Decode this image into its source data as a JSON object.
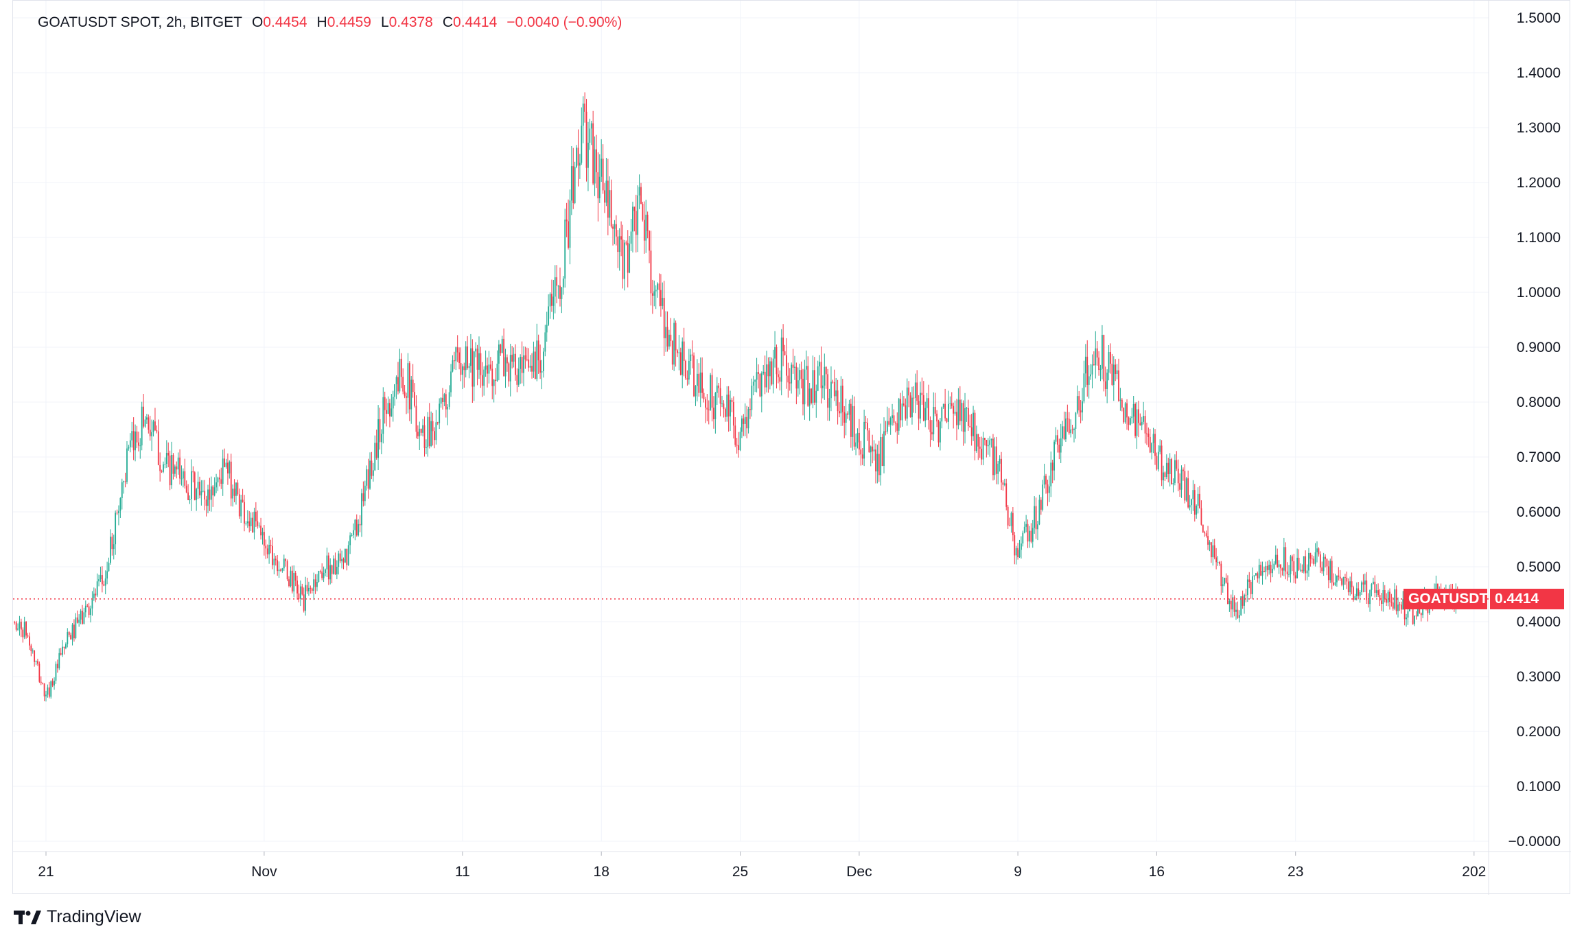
{
  "header": {
    "symbol": "GOATUSDT SPOT, 2h, BITGET",
    "open_label": "O",
    "open": "0.4454",
    "high_label": "H",
    "high": "0.4459",
    "low_label": "L",
    "low": "0.4378",
    "close_label": "C",
    "close": "0.4414",
    "change": "−0.0040 (−0.90%)"
  },
  "brand": {
    "name": "TradingView"
  },
  "price_tag": {
    "symbol": "GOATUSDT",
    "value": "0.4414"
  },
  "colors": {
    "up": "#22ab94",
    "down": "#f23645",
    "grid": "#f0f3fa",
    "axis_text": "#131722"
  },
  "chart_data": {
    "type": "candlestick",
    "symbol": "GOATUSDT",
    "timeframe": "2h",
    "exchange": "BITGET",
    "last_price": 0.4414,
    "ylim": [
      -0.02,
      1.52
    ],
    "y_ticks": [
      "1.5000",
      "1.4000",
      "1.3000",
      "1.2000",
      "1.1000",
      "1.0000",
      "0.9000",
      "0.8000",
      "0.7000",
      "0.6000",
      "0.5000",
      "0.4000",
      "0.3000",
      "0.2000",
      "0.1000",
      "−0.0000"
    ],
    "x_ticks": [
      "21",
      "Nov",
      "11",
      "18",
      "25",
      "Dec",
      "9",
      "16",
      "23",
      "202"
    ],
    "x_tick_dates": [
      "2024-10-21",
      "2024-11-01",
      "2024-11-11",
      "2024-11-18",
      "2024-11-25",
      "2024-12-01",
      "2024-12-09",
      "2024-12-16",
      "2024-12-23",
      "2025-01-01"
    ],
    "grid": true,
    "path_dates": [
      "2024-10-19",
      "2024-10-20",
      "2024-10-21",
      "2024-10-22",
      "2024-10-23",
      "2024-10-24",
      "2024-10-25",
      "2024-10-26",
      "2024-10-27",
      "2024-10-28",
      "2024-10-29",
      "2024-10-30",
      "2024-10-31",
      "2024-11-01",
      "2024-11-03",
      "2024-11-04",
      "2024-11-05",
      "2024-11-06",
      "2024-11-07",
      "2024-11-08",
      "2024-11-09",
      "2024-11-10",
      "2024-11-11",
      "2024-11-12",
      "2024-11-13",
      "2024-11-14",
      "2024-11-15",
      "2024-11-16",
      "2024-11-17",
      "2024-11-18",
      "2024-11-19",
      "2024-11-20",
      "2024-11-21",
      "2024-11-22",
      "2024-11-23",
      "2024-11-24",
      "2024-11-25",
      "2024-11-26",
      "2024-11-27",
      "2024-11-28",
      "2024-11-29",
      "2024-11-30",
      "2024-12-01",
      "2024-12-02",
      "2024-12-03",
      "2024-12-04",
      "2024-12-05",
      "2024-12-06",
      "2024-12-07",
      "2024-12-08",
      "2024-12-09",
      "2024-12-10",
      "2024-12-11",
      "2024-12-12",
      "2024-12-13",
      "2024-12-14",
      "2024-12-15",
      "2024-12-16",
      "2024-12-17",
      "2024-12-18",
      "2024-12-19",
      "2024-12-20",
      "2024-12-21",
      "2024-12-22",
      "2024-12-23",
      "2024-12-24",
      "2024-12-25",
      "2024-12-26",
      "2024-12-27",
      "2024-12-28",
      "2024-12-29",
      "2024-12-30",
      "2024-12-31"
    ],
    "path_values": [
      0.41,
      0.38,
      0.26,
      0.36,
      0.42,
      0.48,
      0.68,
      0.78,
      0.68,
      0.66,
      0.62,
      0.68,
      0.6,
      0.55,
      0.44,
      0.5,
      0.5,
      0.62,
      0.78,
      0.86,
      0.74,
      0.78,
      0.9,
      0.84,
      0.88,
      0.84,
      0.9,
      1.05,
      1.3,
      1.2,
      1.05,
      1.15,
      0.95,
      0.88,
      0.82,
      0.8,
      0.74,
      0.85,
      0.88,
      0.82,
      0.84,
      0.8,
      0.74,
      0.7,
      0.78,
      0.8,
      0.76,
      0.78,
      0.74,
      0.68,
      0.52,
      0.6,
      0.72,
      0.8,
      0.9,
      0.82,
      0.76,
      0.7,
      0.66,
      0.62,
      0.5,
      0.42,
      0.48,
      0.52,
      0.5,
      0.52,
      0.48,
      0.46,
      0.45,
      0.44,
      0.41,
      0.45,
      0.44
    ]
  }
}
